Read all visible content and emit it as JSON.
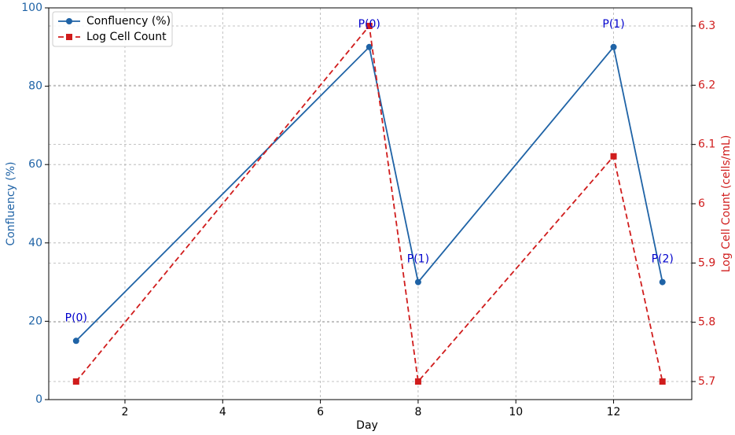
{
  "chart_data": {
    "type": "line",
    "x_label": "Day",
    "y_label": "Confluency (%)",
    "y2_label": "Log Cell Count (cells/mL)",
    "x": [
      1,
      7,
      8,
      12,
      13
    ],
    "series": [
      {
        "name": "Confluency (%)",
        "color": "#1f63a6",
        "marker": "circle",
        "dash": "solid",
        "values": [
          15,
          90,
          30,
          90,
          30
        ]
      },
      {
        "name": "Log Cell Count",
        "color": "#d01c1c",
        "marker": "square",
        "dash": "dashed",
        "axis": "y2",
        "values": [
          5.7,
          6.3,
          5.7,
          6.08,
          5.7
        ]
      }
    ],
    "point_labels": [
      "P(0)",
      "P(0)",
      "P(1)",
      "P(1)",
      "P(2)"
    ],
    "label_color": "#0000cc",
    "xlim": [
      0.44,
      13.6
    ],
    "xticks": [
      2,
      4,
      6,
      8,
      10,
      12
    ],
    "ylim": [
      0,
      100
    ],
    "yticks": [
      0,
      20,
      40,
      60,
      80,
      100
    ],
    "y2lim": [
      5.6695,
      6.3305
    ],
    "y2ticks": [
      5.7,
      5.8,
      5.9,
      6.0,
      6.1,
      6.2,
      6.3
    ],
    "grid": true,
    "legend": "upper left"
  }
}
